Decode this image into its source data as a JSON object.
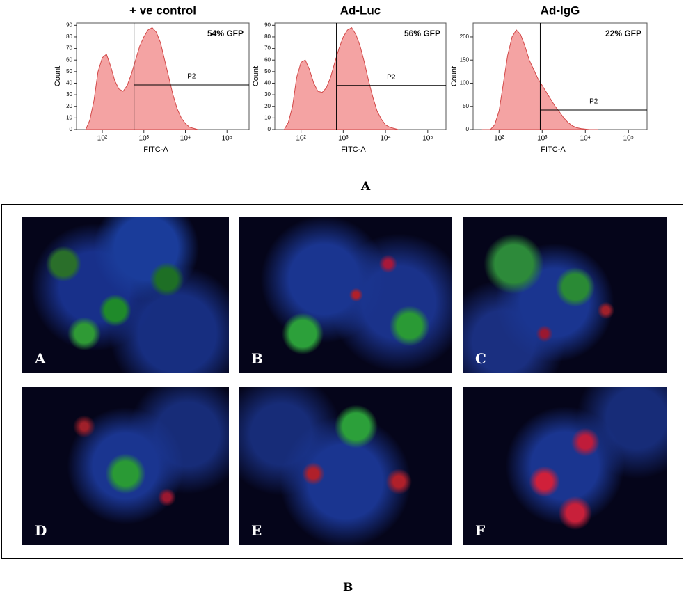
{
  "chart_data": [
    {
      "type": "area",
      "title": "+ ve control",
      "x_label": "FITC-A",
      "y_label": "Count",
      "log_x": true,
      "color": "#f4a3a3",
      "line_color": "#d24848",
      "x": [
        40,
        50,
        63,
        79,
        100,
        126,
        158,
        200,
        251,
        316,
        398,
        501,
        631,
        794,
        1000,
        1259,
        1585,
        1995,
        2512,
        3162,
        3981,
        5012,
        6310,
        7943,
        10000,
        12589,
        15849,
        19953
      ],
      "values": [
        0,
        8,
        25,
        50,
        62,
        65,
        55,
        42,
        35,
        33,
        38,
        48,
        60,
        72,
        80,
        86,
        88,
        84,
        75,
        60,
        45,
        30,
        18,
        10,
        5,
        2,
        1,
        0
      ],
      "xlim": [
        24,
        340000
      ],
      "xticks": [
        {
          "value": 100,
          "label": "10²"
        },
        {
          "value": 1000,
          "label": "10³"
        },
        {
          "value": 10000,
          "label": "10⁴"
        },
        {
          "value": 100000,
          "label": "10⁵"
        }
      ],
      "ylim": [
        0,
        92
      ],
      "yticks": [
        0,
        10,
        20,
        30,
        40,
        50,
        60,
        70,
        80,
        90
      ],
      "annotation": "54% GFP",
      "gate": {
        "x": 580,
        "y": 38.5,
        "label": "P2"
      }
    },
    {
      "type": "area",
      "title": "Ad-Luc",
      "x_label": "FITC-A",
      "y_label": "Count",
      "log_x": true,
      "color": "#f4a3a3",
      "line_color": "#d24848",
      "x": [
        40,
        50,
        63,
        79,
        100,
        126,
        158,
        200,
        251,
        316,
        398,
        501,
        631,
        794,
        1000,
        1259,
        1585,
        1995,
        2512,
        3162,
        3981,
        5012,
        6310,
        7943,
        10000,
        12589,
        15849,
        19953
      ],
      "values": [
        0,
        6,
        20,
        45,
        58,
        60,
        52,
        40,
        33,
        32,
        36,
        45,
        58,
        70,
        80,
        86,
        88,
        82,
        72,
        58,
        42,
        28,
        16,
        9,
        4,
        2,
        1,
        0
      ],
      "xlim": [
        24,
        270000
      ],
      "xticks": [
        {
          "value": 100,
          "label": "10²"
        },
        {
          "value": 1000,
          "label": "10³"
        },
        {
          "value": 10000,
          "label": "10⁴"
        },
        {
          "value": 100000,
          "label": "10⁵"
        }
      ],
      "ylim": [
        0,
        92
      ],
      "yticks": [
        0,
        10,
        20,
        30,
        40,
        50,
        60,
        70,
        80,
        90
      ],
      "annotation": "56% GFP",
      "gate": {
        "x": 690,
        "y": 38,
        "label": "P2"
      }
    },
    {
      "type": "area",
      "title": "Ad-IgG",
      "x_label": "FITC-A",
      "y_label": "Count",
      "log_x": true,
      "color": "#f4a3a3",
      "line_color": "#d24848",
      "x": [
        40,
        50,
        63,
        79,
        100,
        126,
        158,
        200,
        251,
        316,
        398,
        501,
        631,
        794,
        1000,
        1259,
        1585,
        1995,
        2512,
        3162,
        3981,
        5012,
        6310,
        7943,
        10000,
        12589,
        15849,
        19953
      ],
      "values": [
        0,
        0,
        0,
        10,
        40,
        100,
        160,
        200,
        215,
        205,
        180,
        150,
        130,
        110,
        95,
        80,
        65,
        50,
        38,
        25,
        15,
        8,
        4,
        2,
        1,
        0,
        0,
        0
      ],
      "xlim": [
        25,
        270000
      ],
      "xticks": [
        {
          "value": 100,
          "label": "10²"
        },
        {
          "value": 1000,
          "label": "10³"
        },
        {
          "value": 10000,
          "label": "10⁴"
        },
        {
          "value": 100000,
          "label": "10⁵"
        }
      ],
      "ylim": [
        0,
        230
      ],
      "yticks": [
        0,
        50,
        100,
        150,
        200
      ],
      "annotation": "22% GFP",
      "gate": {
        "x": 900,
        "y": 42,
        "label": "P2"
      }
    }
  ],
  "figure": {
    "label_a": "A",
    "label_b": "B",
    "panels": [
      {
        "label": "A"
      },
      {
        "label": "B"
      },
      {
        "label": "C"
      },
      {
        "label": "D"
      },
      {
        "label": "E"
      },
      {
        "label": "F"
      }
    ]
  }
}
